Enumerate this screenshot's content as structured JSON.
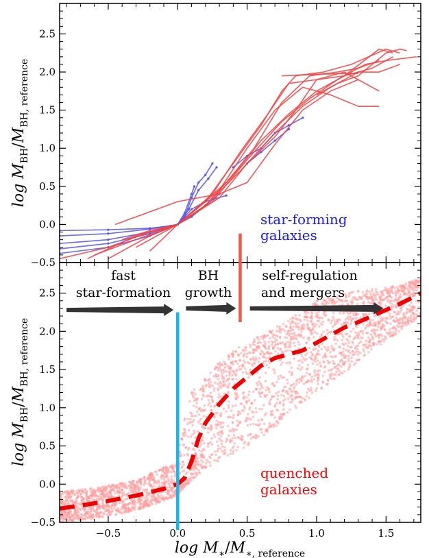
{
  "chart_data": [
    {
      "type": "line",
      "panel": "top",
      "ylabel": "log M_BH / M_BH, reference",
      "xlim": [
        -0.85,
        1.75
      ],
      "ylim": [
        -0.5,
        2.9
      ],
      "yticks": [
        "−0.5",
        "0.0",
        "0.5",
        "1.0",
        "1.5",
        "2.0",
        "2.5"
      ],
      "grid": false,
      "annotations": [
        "star-forming",
        "galaxies"
      ],
      "colors": {
        "star_forming": "#5555ee",
        "quenched": "#ee4444",
        "annotation": "#1a1aff"
      },
      "series": [
        {
          "group": "star-forming",
          "points": [
            [
              -0.85,
              -0.08
            ],
            [
              -0.5,
              -0.07
            ],
            [
              -0.2,
              -0.05
            ],
            [
              -0.05,
              -0.02
            ],
            [
              0.0,
              0.0
            ],
            [
              0.05,
              0.1
            ],
            [
              0.1,
              0.35
            ],
            [
              0.15,
              0.55
            ],
            [
              0.2,
              0.65
            ],
            [
              0.25,
              0.8
            ]
          ]
        },
        {
          "group": "star-forming",
          "points": [
            [
              -0.85,
              -0.15
            ],
            [
              -0.5,
              -0.12
            ],
            [
              -0.2,
              -0.06
            ],
            [
              0.0,
              0.0
            ],
            [
              0.08,
              0.2
            ],
            [
              0.15,
              0.45
            ],
            [
              0.22,
              0.6
            ],
            [
              0.28,
              0.75
            ]
          ]
        },
        {
          "group": "star-forming",
          "points": [
            [
              -0.85,
              -0.25
            ],
            [
              -0.5,
              -0.2
            ],
            [
              -0.2,
              -0.1
            ],
            [
              0.0,
              0.0
            ],
            [
              0.05,
              0.15
            ],
            [
              0.1,
              0.4
            ],
            [
              0.12,
              0.5
            ]
          ]
        },
        {
          "group": "star-forming",
          "points": [
            [
              -0.85,
              -0.32
            ],
            [
              -0.5,
              -0.25
            ],
            [
              -0.2,
              -0.12
            ],
            [
              0.0,
              0.0
            ],
            [
              0.1,
              0.2
            ],
            [
              0.2,
              0.3
            ],
            [
              0.35,
              0.38
            ]
          ]
        },
        {
          "group": "star-forming",
          "points": [
            [
              -0.85,
              -0.38
            ],
            [
              -0.5,
              -0.3
            ],
            [
              -0.2,
              -0.15
            ],
            [
              0.0,
              0.0
            ],
            [
              0.1,
              0.1
            ],
            [
              0.2,
              0.25
            ],
            [
              0.3,
              0.4
            ]
          ]
        },
        {
          "group": "star-forming",
          "points": [
            [
              0.4,
              0.75
            ],
            [
              0.5,
              0.9
            ],
            [
              0.6,
              1.0
            ],
            [
              0.7,
              1.2
            ],
            [
              0.8,
              1.3
            ],
            [
              0.9,
              1.4
            ]
          ]
        },
        {
          "group": "star-forming",
          "points": [
            [
              0.5,
              0.8
            ],
            [
              0.6,
              0.95
            ],
            [
              0.7,
              1.1
            ],
            [
              0.8,
              1.25
            ]
          ]
        },
        {
          "group": "quenched",
          "points": [
            [
              -0.85,
              -0.45
            ],
            [
              -0.5,
              -0.3
            ],
            [
              -0.2,
              -0.1
            ],
            [
              0.0,
              0.0
            ],
            [
              0.2,
              0.3
            ],
            [
              0.4,
              0.8
            ],
            [
              0.6,
              1.3
            ],
            [
              0.75,
              1.75
            ],
            [
              0.85,
              1.95
            ],
            [
              1.05,
              2.0
            ],
            [
              1.25,
              2.1
            ],
            [
              1.5,
              2.3
            ],
            [
              1.6,
              2.25
            ]
          ]
        },
        {
          "group": "quenched",
          "points": [
            [
              -0.65,
              -0.45
            ],
            [
              -0.3,
              -0.15
            ],
            [
              0.0,
              0.0
            ],
            [
              0.25,
              0.4
            ],
            [
              0.45,
              0.95
            ],
            [
              0.65,
              1.45
            ],
            [
              0.8,
              1.85
            ],
            [
              1.0,
              1.9
            ],
            [
              1.2,
              1.95
            ],
            [
              1.45,
              2.3
            ],
            [
              1.55,
              2.25
            ]
          ]
        },
        {
          "group": "quenched",
          "points": [
            [
              -0.5,
              -0.45
            ],
            [
              -0.2,
              -0.15
            ],
            [
              0.0,
              0.0
            ],
            [
              0.3,
              0.45
            ],
            [
              0.5,
              1.0
            ],
            [
              0.7,
              1.5
            ],
            [
              0.9,
              1.8
            ],
            [
              1.1,
              1.7
            ],
            [
              1.3,
              1.55
            ],
            [
              1.45,
              1.55
            ]
          ]
        },
        {
          "group": "quenched",
          "points": [
            [
              -0.6,
              -0.4
            ],
            [
              -0.3,
              -0.2
            ],
            [
              0.0,
              0.0
            ],
            [
              0.2,
              0.25
            ],
            [
              0.4,
              0.65
            ],
            [
              0.6,
              1.1
            ],
            [
              0.8,
              1.45
            ],
            [
              1.0,
              1.75
            ],
            [
              1.2,
              1.95
            ],
            [
              1.4,
              2.05
            ],
            [
              1.55,
              2.2
            ]
          ]
        },
        {
          "group": "quenched",
          "points": [
            [
              -0.4,
              -0.2
            ],
            [
              -0.2,
              -0.08
            ],
            [
              0.0,
              0.0
            ],
            [
              0.3,
              0.35
            ],
            [
              0.5,
              0.8
            ],
            [
              0.7,
              1.15
            ],
            [
              0.85,
              1.5
            ],
            [
              1.0,
              1.9
            ],
            [
              1.2,
              2.0
            ],
            [
              1.35,
              1.85
            ],
            [
              1.45,
              1.75
            ]
          ]
        },
        {
          "group": "quenched",
          "points": [
            [
              -0.45,
              0.0
            ],
            [
              0.0,
              0.3
            ],
            [
              0.3,
              0.4
            ],
            [
              0.5,
              0.55
            ],
            [
              0.7,
              1.05
            ],
            [
              0.9,
              1.5
            ],
            [
              1.1,
              1.75
            ],
            [
              1.3,
              1.9
            ]
          ]
        },
        {
          "group": "quenched",
          "points": [
            [
              -0.3,
              -0.3
            ],
            [
              0.0,
              0.0
            ],
            [
              0.25,
              0.3
            ],
            [
              0.5,
              0.85
            ],
            [
              0.75,
              1.35
            ],
            [
              0.95,
              1.65
            ],
            [
              1.15,
              1.9
            ],
            [
              1.35,
              2.1
            ],
            [
              1.5,
              2.15
            ],
            [
              1.72,
              2.2
            ]
          ]
        },
        {
          "group": "quenched",
          "points": [
            [
              0.0,
              0.0
            ],
            [
              0.2,
              0.25
            ],
            [
              0.45,
              0.7
            ],
            [
              0.7,
              1.2
            ],
            [
              0.9,
              1.55
            ],
            [
              1.1,
              1.8
            ],
            [
              1.3,
              2.0
            ],
            [
              1.45,
              2.0
            ],
            [
              1.6,
              2.1
            ]
          ]
        },
        {
          "group": "quenched",
          "points": [
            [
              -0.2,
              -0.35
            ],
            [
              0.0,
              0.0
            ],
            [
              0.35,
              0.55
            ],
            [
              0.55,
              1.0
            ],
            [
              0.75,
              1.6
            ],
            [
              0.95,
              1.95
            ],
            [
              1.15,
              2.0
            ],
            [
              1.3,
              2.05
            ],
            [
              1.45,
              2.15
            ]
          ]
        },
        {
          "group": "quenched",
          "points": [
            [
              1.0,
              1.7
            ],
            [
              1.15,
              1.85
            ],
            [
              1.3,
              1.95
            ],
            [
              1.5,
              2.25
            ],
            [
              1.6,
              2.3
            ],
            [
              1.65,
              2.28
            ]
          ]
        },
        {
          "group": "quenched",
          "points": [
            [
              0.75,
              1.95
            ],
            [
              1.0,
              1.97
            ],
            [
              1.2,
              1.98
            ],
            [
              1.3,
              1.98
            ]
          ]
        }
      ]
    },
    {
      "type": "scatter",
      "panel": "bottom",
      "xlabel": "log M_* / M_*, reference",
      "ylabel": "log M_BH / M_BH, reference",
      "xlim": [
        -0.85,
        1.75
      ],
      "ylim": [
        -0.5,
        2.9
      ],
      "xticks": [
        "−0.5",
        "0.0",
        "0.5",
        "1.0",
        "1.5"
      ],
      "yticks": [
        "−0.5",
        "0.0",
        "0.5",
        "1.0",
        "1.5",
        "2.0",
        "2.5"
      ],
      "grid": false,
      "colors": {
        "scatter": "#ff9a9a",
        "median": "#ee0000",
        "arrow": "#333333",
        "line_fast": "#11b7ee",
        "line_selfreg": "#ef5a4a"
      },
      "median_line": {
        "x": [
          -0.85,
          -0.7,
          -0.5,
          -0.3,
          -0.1,
          0.0,
          0.05,
          0.1,
          0.15,
          0.2,
          0.3,
          0.4,
          0.5,
          0.6,
          0.7,
          0.8,
          0.9,
          1.0,
          1.1,
          1.2,
          1.3,
          1.4,
          1.5,
          1.6,
          1.7,
          1.75
        ],
        "y": [
          -0.32,
          -0.28,
          -0.22,
          -0.15,
          -0.06,
          0.0,
          0.08,
          0.3,
          0.6,
          0.8,
          1.05,
          1.25,
          1.4,
          1.55,
          1.65,
          1.7,
          1.75,
          1.85,
          1.95,
          2.05,
          2.12,
          2.2,
          2.28,
          2.36,
          2.45,
          2.5
        ]
      },
      "scatter_envelope": {
        "x": [
          -0.85,
          -0.6,
          -0.3,
          0.0,
          0.05,
          0.1,
          0.2,
          0.3,
          0.4,
          0.6,
          0.8,
          1.0,
          1.2,
          1.4,
          1.6,
          1.75
        ],
        "y_low": [
          -0.5,
          -0.45,
          -0.35,
          -0.15,
          -0.05,
          0.05,
          0.2,
          0.3,
          0.4,
          0.6,
          0.9,
          1.2,
          1.45,
          1.75,
          2.0,
          2.2
        ],
        "y_high": [
          -0.1,
          -0.05,
          0.05,
          0.3,
          0.9,
          1.2,
          1.4,
          1.6,
          1.75,
          1.95,
          2.15,
          2.4,
          2.5,
          2.55,
          2.6,
          2.7
        ]
      },
      "stage_lines": [
        {
          "x": 0.0,
          "y_from": -0.6,
          "y_to": 2.25,
          "which": "fast"
        },
        {
          "x": 0.45,
          "y_from": 2.12,
          "y_to": 3.28,
          "which": "selfreg"
        }
      ],
      "arrows": [
        {
          "x_from": -0.8,
          "x_to": -0.03,
          "y": 2.28
        },
        {
          "x_from": 0.06,
          "x_to": 0.42,
          "y": 2.3
        },
        {
          "x_from": 0.52,
          "x_to": 1.48,
          "y": 2.3
        }
      ],
      "annotations": {
        "fast": [
          "fast",
          "star-formation"
        ],
        "bh": [
          "BH",
          "growth"
        ],
        "selfreg": [
          "self-regulation",
          "and mergers"
        ],
        "quenched": [
          "quenched",
          "galaxies"
        ]
      }
    }
  ]
}
